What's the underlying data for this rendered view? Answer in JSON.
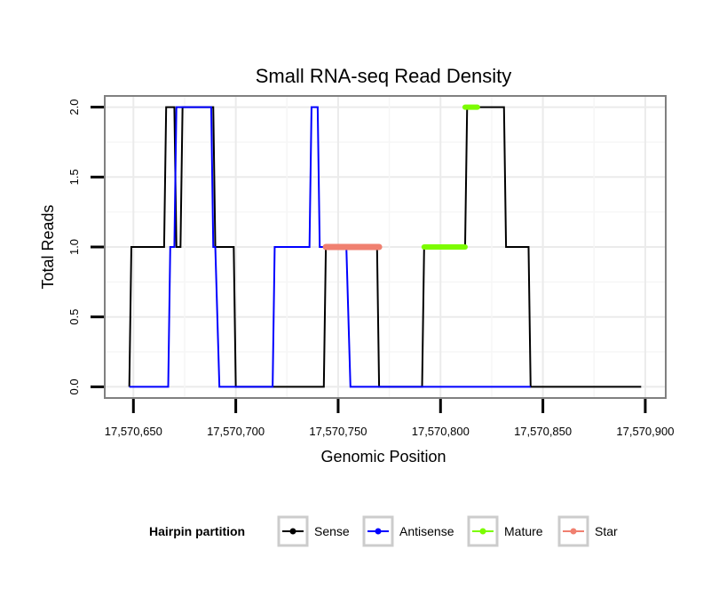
{
  "chart_data": {
    "type": "line",
    "title": "Small RNA-seq Read Density",
    "xlabel": "Genomic Position",
    "ylabel": "Total Reads",
    "xlim": [
      17570636,
      17570910
    ],
    "ylim": [
      -0.08,
      2.08
    ],
    "x_ticks": [
      17570650,
      17570700,
      17570750,
      17570800,
      17570850,
      17570900
    ],
    "x_tick_labels": [
      "17,570,650",
      "17,570,700",
      "17,570,750",
      "17,570,800",
      "17,570,850",
      "17,570,900"
    ],
    "y_ticks": [
      0,
      0.5,
      1,
      1.5,
      2
    ],
    "y_tick_labels": [
      "0.0",
      "0.5",
      "1.0",
      "1.5",
      "2.0"
    ],
    "grid": true,
    "legend": {
      "title": "Hairpin partition",
      "position": "bottom",
      "entries": [
        {
          "name": "Sense",
          "color": "#000000"
        },
        {
          "name": "Antisense",
          "color": "#0000ff"
        },
        {
          "name": "Mature",
          "color": "#7cfc00"
        },
        {
          "name": "Star",
          "color": "#f08070"
        }
      ]
    },
    "series": [
      {
        "name": "Sense",
        "color": "#000000",
        "width": 2,
        "points": [
          [
            17570648,
            0
          ],
          [
            17570649,
            1
          ],
          [
            17570665,
            1
          ],
          [
            17570666,
            2
          ],
          [
            17570670,
            2
          ],
          [
            17570671,
            1
          ],
          [
            17570673,
            1
          ],
          [
            17570674,
            2
          ],
          [
            17570689,
            2
          ],
          [
            17570690,
            1
          ],
          [
            17570699,
            1
          ],
          [
            17570700,
            0
          ],
          [
            17570743,
            0
          ],
          [
            17570744,
            1
          ],
          [
            17570769,
            1
          ],
          [
            17570770,
            0
          ],
          [
            17570791,
            0
          ],
          [
            17570792,
            1
          ],
          [
            17570812,
            1
          ],
          [
            17570813,
            2
          ],
          [
            17570831,
            2
          ],
          [
            17570832,
            1
          ],
          [
            17570843,
            1
          ],
          [
            17570844,
            0
          ],
          [
            17570898,
            0
          ]
        ]
      },
      {
        "name": "Antisense",
        "color": "#0000ff",
        "width": 2,
        "points": [
          [
            17570648,
            0
          ],
          [
            17570667,
            0
          ],
          [
            17570668,
            1
          ],
          [
            17570670,
            1
          ],
          [
            17570671,
            2
          ],
          [
            17570688,
            2
          ],
          [
            17570689,
            1
          ],
          [
            17570690,
            1
          ],
          [
            17570692,
            0
          ],
          [
            17570718,
            0
          ],
          [
            17570719,
            1
          ],
          [
            17570736,
            1
          ],
          [
            17570737,
            2
          ],
          [
            17570740,
            2
          ],
          [
            17570741,
            1
          ],
          [
            17570754,
            1
          ],
          [
            17570756,
            0
          ],
          [
            17570844,
            0
          ]
        ]
      },
      {
        "name": "Mature",
        "color": "#7cfc00",
        "width": 6,
        "segments": [
          {
            "x0": 17570792,
            "x1": 17570812,
            "y": 1
          },
          {
            "x0": 17570812,
            "x1": 17570818,
            "y": 2
          }
        ]
      },
      {
        "name": "Star",
        "color": "#f08070",
        "width": 7,
        "segments": [
          {
            "x0": 17570744,
            "x1": 17570770,
            "y": 1
          }
        ]
      }
    ]
  }
}
